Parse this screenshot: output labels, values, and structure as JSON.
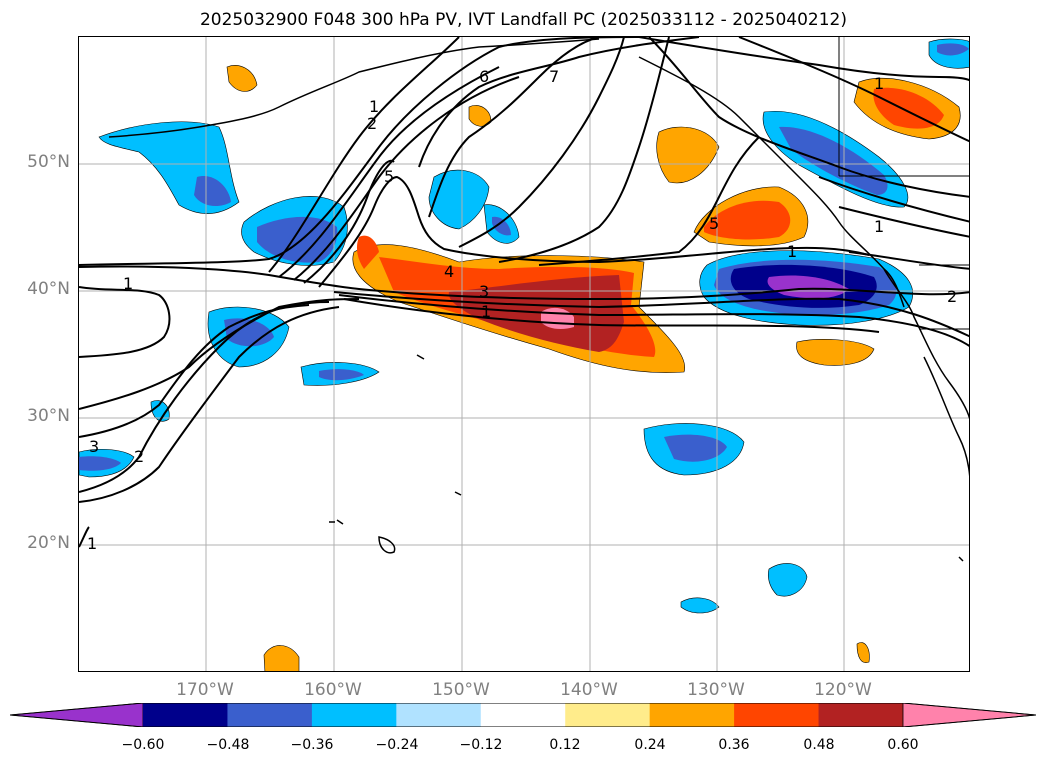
{
  "title": "2025032900 F048 300 hPa PV, IVT Landfall PC (2025033112 - 2025040212)",
  "lat_labels": [
    "50°N",
    "40°N",
    "30°N",
    "20°N"
  ],
  "lon_labels": [
    "170°W",
    "160°W",
    "150°W",
    "140°W",
    "130°W",
    "120°W"
  ],
  "colorbar": {
    "ticks": [
      "−0.60",
      "−0.48",
      "−0.36",
      "−0.24",
      "−0.12",
      "0.12",
      "0.24",
      "0.36",
      "0.48",
      "0.60"
    ],
    "colors": [
      "#9932cc",
      "#00008b",
      "#3a5fcd",
      "#00bfff",
      "#b0e2ff",
      "#ffffff",
      "#ffec8b",
      "#ffa500",
      "#ff4500",
      "#b22222",
      "#ff82ab"
    ]
  },
  "contour_labels": [
    "1",
    "1",
    "2",
    "3",
    "4",
    "5",
    "5",
    "6",
    "7",
    "1",
    "1",
    "2",
    "3",
    "1",
    "1",
    "2",
    "1"
  ]
}
